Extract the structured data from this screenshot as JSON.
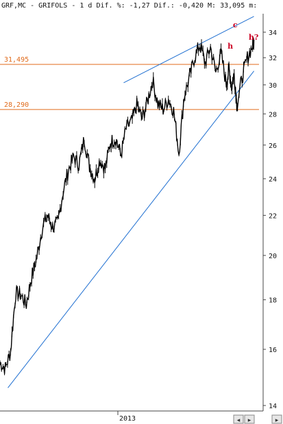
{
  "header": {
    "text": "GRF,MC - GRIFOLS -  1 d Dif. %: -1,27 Dif.: -0,420 M: 33,095 m:"
  },
  "colors": {
    "background": "#ffffff",
    "price": "#000000",
    "trendline": "#1f6fd1",
    "level": "#e06a1a",
    "annotation": "#cc0022",
    "axis": "#444444"
  },
  "chart_data": {
    "type": "line",
    "title": "GRF,MC - GRIFOLS - 1 d",
    "ylim": [
      14,
      35.5
    ],
    "y_scale": "log",
    "grid": false,
    "x_tick_labels": [
      "2013"
    ],
    "y_tick_labels": [
      "34",
      "32",
      "30",
      "28",
      "26",
      "24",
      "22",
      "20",
      "18",
      "16",
      "14"
    ],
    "levels": [
      {
        "label": "31,495",
        "value": 31.495
      },
      {
        "label": "28,290",
        "value": 28.29
      }
    ],
    "annotations": [
      {
        "text": "h",
        "x": 0.865,
        "y": 32.7
      },
      {
        "text": "c",
        "x": 0.885,
        "y": 34.4
      },
      {
        "text": "h?",
        "x": 0.945,
        "y": 33.4
      }
    ],
    "trendlines": [
      {
        "name": "",
        "x0": 0.03,
        "y0": 14.6,
        "x1": 0.965,
        "y1": 31.0
      },
      {
        "name": "",
        "x0": 0.47,
        "y0": 30.15,
        "x1": 0.965,
        "y1": 35.3
      }
    ],
    "x": [
      0.0,
      0.02,
      0.04,
      0.06,
      0.08,
      0.1,
      0.12,
      0.14,
      0.16,
      0.18,
      0.2,
      0.22,
      0.24,
      0.26,
      0.28,
      0.3,
      0.32,
      0.34,
      0.36,
      0.38,
      0.4,
      0.42,
      0.44,
      0.46,
      0.48,
      0.5,
      0.52,
      0.54,
      0.56,
      0.58,
      0.6,
      0.62,
      0.64,
      0.66,
      0.68,
      0.7,
      0.72,
      0.74,
      0.76,
      0.78,
      0.8,
      0.82,
      0.84,
      0.86,
      0.87,
      0.88,
      0.89,
      0.9,
      0.92,
      0.94,
      0.96,
      0.965
    ],
    "series": [
      {
        "name": "",
        "values": [
          15.5,
          15.3,
          15.9,
          18.3,
          18.2,
          17.8,
          19.0,
          19.9,
          21.3,
          22.0,
          21.4,
          21.6,
          23.3,
          24.5,
          25.3,
          24.8,
          26.4,
          24.7,
          24.0,
          25.1,
          24.6,
          26.2,
          26.4,
          25.4,
          27.1,
          27.5,
          28.6,
          27.7,
          28.8,
          30.3,
          28.7,
          28.3,
          29.0,
          28.2,
          25.5,
          29.2,
          30.5,
          32.1,
          33.0,
          31.6,
          32.8,
          30.9,
          32.4,
          30.0,
          31.2,
          29.8,
          30.8,
          28.6,
          30.5,
          32.0,
          32.9,
          33.4
        ]
      }
    ]
  }
}
